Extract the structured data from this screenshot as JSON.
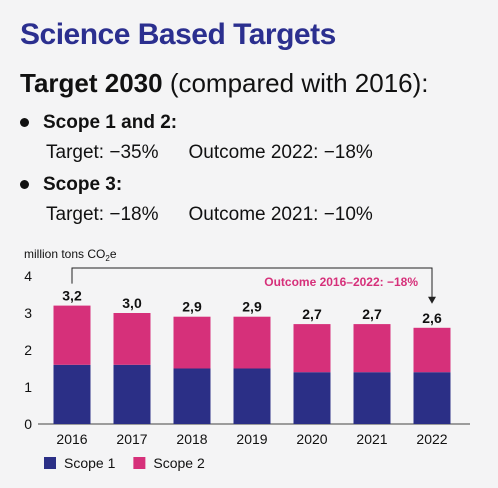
{
  "header": {
    "title": "Science Based Targets",
    "subtitle_bold": "Target 2030",
    "subtitle_rest": " (compared with 2016):"
  },
  "targets": [
    {
      "label": "Scope 1 and 2:",
      "target": "Target: −35%",
      "outcome": "Outcome 2022: −18%"
    },
    {
      "label": "Scope 3:",
      "target": "Target: −18%",
      "outcome": "Outcome 2021: −10%"
    }
  ],
  "chart_data": {
    "type": "bar",
    "stacked": true,
    "ylabel_main": "million tons CO",
    "ylabel_sub": "2",
    "ylabel_tail": "e",
    "categories": [
      "2016",
      "2017",
      "2018",
      "2019",
      "2020",
      "2021",
      "2022"
    ],
    "series": [
      {
        "name": "Scope 1",
        "color": "#2b2f86",
        "values": [
          1.6,
          1.6,
          1.5,
          1.5,
          1.4,
          1.4,
          1.4
        ]
      },
      {
        "name": "Scope 2",
        "color": "#d6307a",
        "values": [
          1.6,
          1.4,
          1.4,
          1.4,
          1.3,
          1.3,
          1.2
        ]
      }
    ],
    "totals": [
      "3,2",
      "3,0",
      "2,9",
      "2,9",
      "2,7",
      "2,7",
      "2,6"
    ],
    "ylim": [
      0,
      4
    ],
    "yticks": [
      "0",
      "1",
      "2",
      "3",
      "4"
    ],
    "annotation": "Outcome 2016–2022: −18%",
    "annotation_color": "#d6307a",
    "legend_position": "bottom-left"
  }
}
